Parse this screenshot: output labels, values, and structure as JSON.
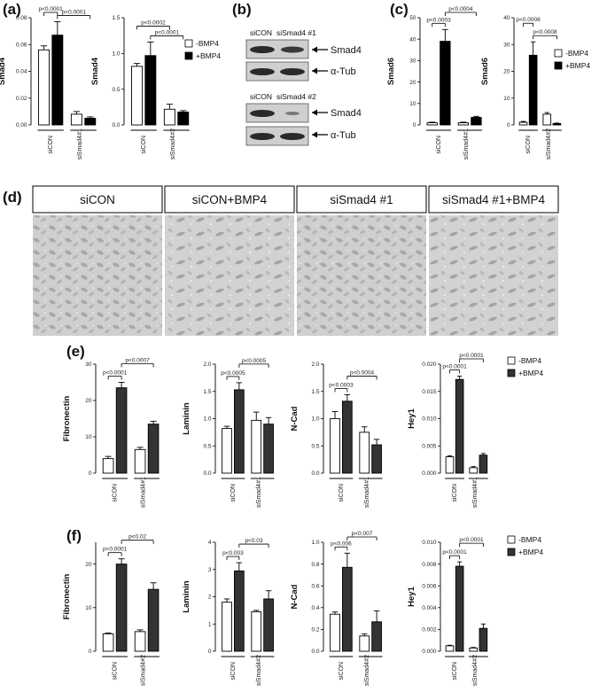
{
  "panels": {
    "a": "(a)",
    "b": "(b)",
    "c": "(c)",
    "d": "(d)",
    "e": "(e)",
    "f": "(f)"
  },
  "legend": {
    "minus": "-BMP4",
    "plus": "+BMP4",
    "colors": {
      "minus": "#ffffff",
      "plus_black": "#000000",
      "plus_gray": "#333333"
    }
  },
  "western_blot": {
    "top1": [
      "siCON",
      "siSmad4 #1"
    ],
    "top2": [
      "siCON",
      "siSmad4 #2"
    ],
    "bands1": [
      "Smad4",
      "α-Tub"
    ],
    "bands2": [
      "Smad4",
      "α-Tub"
    ]
  },
  "micrographs": [
    "siCON",
    "siCON+BMP4",
    "siSmad4 #1",
    "siSmad4 #1+BMP4"
  ],
  "chart_data": [
    {
      "id": "a1",
      "type": "bar",
      "panel": "a",
      "ylabel": "Smad4",
      "ylim": [
        0,
        0.08
      ],
      "yticks": [
        "0.00",
        "0.02",
        "0.04",
        "0.06",
        "0.08"
      ],
      "categories": [
        "siCON",
        "siSmad4 #1"
      ],
      "series": [
        {
          "name": "-BMP4",
          "values": [
            0.056,
            0.008
          ],
          "err": [
            0.003,
            0.002
          ]
        },
        {
          "name": "+BMP4",
          "values": [
            0.067,
            0.005
          ],
          "err": [
            0.01,
            0.001
          ]
        }
      ],
      "pvals": [
        {
          "text": "p<0.0001",
          "from": 1,
          "to": 3
        },
        {
          "text": "p<0.0001",
          "from": 0,
          "to": 1
        }
      ]
    },
    {
      "id": "a2",
      "type": "bar",
      "panel": "a",
      "ylabel": "Smad4",
      "ylim": [
        0,
        1.5
      ],
      "yticks": [
        "0.0",
        "0.5",
        "1.0",
        "1.5"
      ],
      "categories": [
        "siCON",
        "siSmad4 #2"
      ],
      "series": [
        {
          "name": "-BMP4",
          "values": [
            0.82,
            0.22
          ],
          "err": [
            0.04,
            0.07
          ]
        },
        {
          "name": "+BMP4",
          "values": [
            0.97,
            0.18
          ],
          "err": [
            0.19,
            0.02
          ]
        }
      ],
      "pvals": [
        {
          "text": "p<0.0001",
          "from": 1,
          "to": 3
        },
        {
          "text": "p<0.0002",
          "from": 0,
          "to": 2
        }
      ]
    },
    {
      "id": "c1",
      "type": "bar",
      "panel": "c",
      "ylabel": "Smad6",
      "ylim": [
        0,
        50
      ],
      "yticks": [
        "0",
        "10",
        "20",
        "30",
        "40",
        "50"
      ],
      "categories": [
        "siCON",
        "siSmad4 #1"
      ],
      "series": [
        {
          "name": "-BMP4",
          "values": [
            1,
            1
          ],
          "err": [
            0.3,
            0.3
          ]
        },
        {
          "name": "+BMP4",
          "values": [
            39,
            3.5
          ],
          "err": [
            5.5,
            0.5
          ]
        }
      ],
      "pvals": [
        {
          "text": "p<0.0003",
          "from": 0,
          "to": 1
        },
        {
          "text": "p<0.0004",
          "from": 1,
          "to": 3
        }
      ]
    },
    {
      "id": "c2",
      "type": "bar",
      "panel": "c",
      "ylabel": "Smad6",
      "ylim": [
        0,
        40
      ],
      "yticks": [
        "0",
        "10",
        "20",
        "30",
        "40"
      ],
      "categories": [
        "siCON",
        "siSmad4 #2"
      ],
      "series": [
        {
          "name": "-BMP4",
          "values": [
            1,
            4
          ],
          "err": [
            0.3,
            0.6
          ]
        },
        {
          "name": "+BMP4",
          "values": [
            26,
            0.5
          ],
          "err": [
            5,
            0.2
          ]
        }
      ],
      "pvals": [
        {
          "text": "p<0.0008",
          "from": 1,
          "to": 3
        },
        {
          "text": "p<0.0008",
          "from": 0,
          "to": 1
        }
      ]
    },
    {
      "id": "e1",
      "type": "bar",
      "panel": "e",
      "ylabel": "Fibronectin",
      "ylim": [
        0,
        30
      ],
      "yticks": [
        "0",
        "10",
        "20",
        "30"
      ],
      "categories": [
        "siCON",
        "siSmad4 #1"
      ],
      "series": [
        {
          "name": "-BMP4",
          "values": [
            4,
            6.5
          ],
          "err": [
            0.6,
            0.6
          ]
        },
        {
          "name": "+BMP4",
          "values": [
            23.5,
            13.5
          ],
          "err": [
            1.5,
            0.8
          ]
        }
      ],
      "pvals": [
        {
          "text": "p<0.0001",
          "from": 0,
          "to": 1
        },
        {
          "text": "p<0.0007",
          "from": 1,
          "to": 3
        }
      ]
    },
    {
      "id": "e2",
      "type": "bar",
      "panel": "e",
      "ylabel": "Laminin",
      "ylim": [
        0,
        2.0
      ],
      "yticks": [
        "0.0",
        "0.5",
        "1.0",
        "1.5",
        "2.0"
      ],
      "categories": [
        "siCON",
        "siSmad4 #1"
      ],
      "series": [
        {
          "name": "-BMP4",
          "values": [
            0.82,
            0.97
          ],
          "err": [
            0.04,
            0.15
          ]
        },
        {
          "name": "+BMP4",
          "values": [
            1.53,
            0.9
          ],
          "err": [
            0.13,
            0.12
          ]
        }
      ],
      "pvals": [
        {
          "text": "p<0.0005",
          "from": 0,
          "to": 1
        },
        {
          "text": "p<0.0005",
          "from": 1,
          "to": 3
        }
      ]
    },
    {
      "id": "e3",
      "type": "bar",
      "panel": "e",
      "ylabel": "N-Cad",
      "ylim": [
        0,
        2.0
      ],
      "yticks": [
        "0.0",
        "0.5",
        "1.0",
        "1.5",
        "2.0"
      ],
      "categories": [
        "siCON",
        "siSmad4 #1"
      ],
      "series": [
        {
          "name": "-BMP4",
          "values": [
            1.0,
            0.75
          ],
          "err": [
            0.13,
            0.1
          ]
        },
        {
          "name": "+BMP4",
          "values": [
            1.32,
            0.52
          ],
          "err": [
            0.12,
            0.1
          ]
        }
      ],
      "pvals": [
        {
          "text": "p<0.0003",
          "from": 0,
          "to": 1
        },
        {
          "text": "p<0.0004",
          "from": 1,
          "to": 3
        }
      ]
    },
    {
      "id": "e4",
      "type": "bar",
      "panel": "e",
      "ylabel": "Hey1",
      "ylim": [
        0,
        0.02
      ],
      "yticks": [
        "0.000",
        "0.005",
        "0.010",
        "0.015",
        "0.020"
      ],
      "categories": [
        "siCON",
        "siSmad4 #1"
      ],
      "series": [
        {
          "name": "-BMP4",
          "values": [
            0.003,
            0.001
          ],
          "err": [
            0.0002,
            0.0002
          ]
        },
        {
          "name": "+BMP4",
          "values": [
            0.0172,
            0.0033
          ],
          "err": [
            0.0006,
            0.0003
          ]
        }
      ],
      "pvals": [
        {
          "text": "p<0.0001",
          "from": 0,
          "to": 1
        },
        {
          "text": "p<0.0001",
          "from": 1,
          "to": 3
        }
      ]
    },
    {
      "id": "f1",
      "type": "bar",
      "panel": "f",
      "ylabel": "Fibronectin",
      "ylim": [
        0,
        25
      ],
      "yticks": [
        "0",
        "10",
        "20"
      ],
      "categories": [
        "siCON",
        "siSmad4 #2"
      ],
      "series": [
        {
          "name": "-BMP4",
          "values": [
            4,
            4.5
          ],
          "err": [
            0.2,
            0.4
          ]
        },
        {
          "name": "+BMP4",
          "values": [
            20,
            14.2
          ],
          "err": [
            1.2,
            1.5
          ]
        }
      ],
      "pvals": [
        {
          "text": "p<0.0001",
          "from": 0,
          "to": 1
        },
        {
          "text": "p<0.02",
          "from": 1,
          "to": 3
        }
      ]
    },
    {
      "id": "f2",
      "type": "bar",
      "panel": "f",
      "ylabel": "Laminin",
      "ylim": [
        0,
        4
      ],
      "yticks": [
        "0",
        "1",
        "2",
        "3",
        "4"
      ],
      "categories": [
        "siCON",
        "siSmad4 #2"
      ],
      "series": [
        {
          "name": "-BMP4",
          "values": [
            1.8,
            1.45
          ],
          "err": [
            0.12,
            0.05
          ]
        },
        {
          "name": "+BMP4",
          "values": [
            2.95,
            1.92
          ],
          "err": [
            0.3,
            0.3
          ]
        }
      ],
      "pvals": [
        {
          "text": "p<0.003",
          "from": 0,
          "to": 1
        },
        {
          "text": "p<0.03",
          "from": 1,
          "to": 3
        }
      ]
    },
    {
      "id": "f3",
      "type": "bar",
      "panel": "f",
      "ylabel": "N-Cad",
      "ylim": [
        0,
        1.0
      ],
      "yticks": [
        "0.0",
        "0.2",
        "0.4",
        "0.6",
        "0.8",
        "1.0"
      ],
      "categories": [
        "siCON",
        "siSmad4 #2"
      ],
      "series": [
        {
          "name": "-BMP4",
          "values": [
            0.34,
            0.14
          ],
          "err": [
            0.02,
            0.02
          ]
        },
        {
          "name": "+BMP4",
          "values": [
            0.77,
            0.27
          ],
          "err": [
            0.13,
            0.1
          ]
        }
      ],
      "pvals": [
        {
          "text": "p<0.006",
          "from": 0,
          "to": 1
        },
        {
          "text": "p<0.007",
          "from": 1,
          "to": 3
        }
      ]
    },
    {
      "id": "f4",
      "type": "bar",
      "panel": "f",
      "ylabel": "Hey1",
      "ylim": [
        0,
        0.01
      ],
      "yticks": [
        "0.000",
        "0.002",
        "0.004",
        "0.006",
        "0.008",
        "0.010"
      ],
      "categories": [
        "siCON",
        "siSmad4 #2"
      ],
      "series": [
        {
          "name": "-BMP4",
          "values": [
            0.0005,
            0.0003
          ],
          "err": [
            5e-05,
            5e-05
          ]
        },
        {
          "name": "+BMP4",
          "values": [
            0.0078,
            0.0021
          ],
          "err": [
            0.0004,
            0.0004
          ]
        }
      ],
      "pvals": [
        {
          "text": "p<0.0001",
          "from": 0,
          "to": 1
        },
        {
          "text": "p<0.0001",
          "from": 1,
          "to": 3
        }
      ]
    }
  ]
}
